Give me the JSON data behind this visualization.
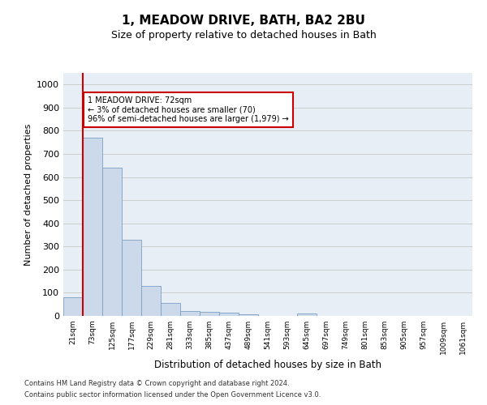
{
  "title": "1, MEADOW DRIVE, BATH, BA2 2BU",
  "subtitle": "Size of property relative to detached houses in Bath",
  "xlabel": "Distribution of detached houses by size in Bath",
  "ylabel": "Number of detached properties",
  "bar_labels": [
    "21sqm",
    "73sqm",
    "125sqm",
    "177sqm",
    "229sqm",
    "281sqm",
    "333sqm",
    "385sqm",
    "437sqm",
    "489sqm",
    "541sqm",
    "593sqm",
    "645sqm",
    "697sqm",
    "749sqm",
    "801sqm",
    "853sqm",
    "905sqm",
    "957sqm",
    "1009sqm",
    "1061sqm"
  ],
  "bar_heights": [
    80,
    770,
    640,
    330,
    130,
    55,
    22,
    18,
    13,
    8,
    0,
    0,
    10,
    0,
    0,
    0,
    0,
    0,
    0,
    0,
    0
  ],
  "bar_color": "#ccd9ea",
  "bar_edge_color": "#7aa0c4",
  "annotation_text": "1 MEADOW DRIVE: 72sqm\n← 3% of detached houses are smaller (70)\n96% of semi-detached houses are larger (1,979) →",
  "annotation_box_color": "#ffffff",
  "annotation_box_edge": "#cc0000",
  "vline_color": "#cc0000",
  "ylim": [
    0,
    1050
  ],
  "yticks": [
    0,
    100,
    200,
    300,
    400,
    500,
    600,
    700,
    800,
    900,
    1000
  ],
  "grid_color": "#cccccc",
  "background_color": "#e8eef5",
  "footer_line1": "Contains HM Land Registry data © Crown copyright and database right 2024.",
  "footer_line2": "Contains public sector information licensed under the Open Government Licence v3.0."
}
